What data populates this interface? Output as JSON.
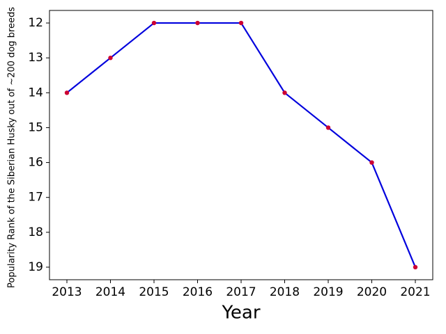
{
  "chart_data": {
    "type": "line",
    "xlabel": "Year",
    "ylabel": "Popularity Rank of the Siberian Husky out of ~200 dog breeds",
    "x": [
      2013,
      2014,
      2015,
      2016,
      2017,
      2018,
      2019,
      2020,
      2021
    ],
    "series": [
      {
        "color": "#0000dd",
        "marker_color": "#cc0033",
        "values": [
          14,
          13,
          12,
          12,
          12,
          14,
          15,
          16,
          19
        ]
      }
    ],
    "xlim": [
      2012.6,
      2021.4
    ],
    "xticks": [
      2013,
      2014,
      2015,
      2016,
      2017,
      2018,
      2019,
      2020,
      2021
    ],
    "ylim": [
      19.36,
      11.64
    ],
    "yticks": [
      12,
      13,
      14,
      15,
      16,
      17,
      18,
      19
    ]
  }
}
